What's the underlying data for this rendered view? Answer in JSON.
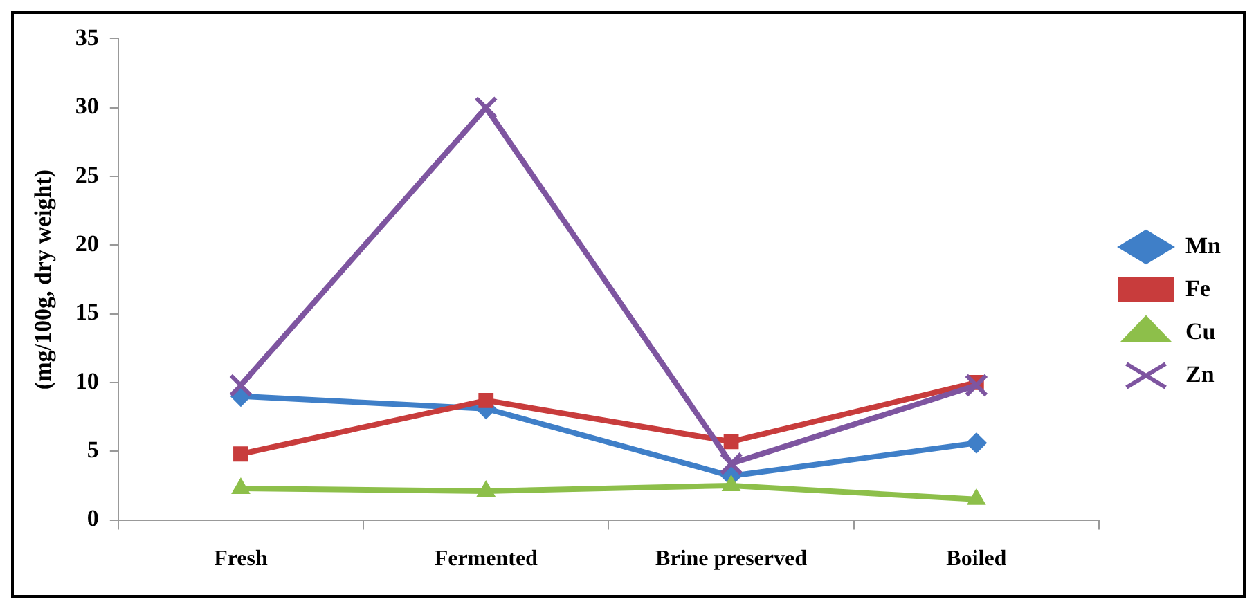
{
  "chart_data": {
    "type": "line",
    "ylabel": "(mg/100g, dry weight)",
    "categories": [
      "Fresh",
      "Fermented",
      "Brine preserved",
      "Boiled"
    ],
    "series": [
      {
        "name": "Mn",
        "color": "#3f7fc8",
        "marker": "diamond",
        "values": [
          9.0,
          8.1,
          3.2,
          5.6
        ]
      },
      {
        "name": "Fe",
        "color": "#c83c3c",
        "marker": "square",
        "values": [
          4.8,
          8.7,
          5.7,
          10.0
        ]
      },
      {
        "name": "Cu",
        "color": "#8dbf4a",
        "marker": "triangle",
        "values": [
          2.3,
          2.1,
          2.5,
          1.5
        ]
      },
      {
        "name": "Zn",
        "color": "#7e55a0",
        "marker": "cross",
        "values": [
          9.8,
          30.0,
          4.1,
          9.8
        ]
      }
    ],
    "ylim": [
      0,
      35
    ],
    "yticks": [
      0,
      5,
      10,
      15,
      20,
      25,
      30,
      35
    ],
    "grid": false,
    "legend": "right"
  }
}
